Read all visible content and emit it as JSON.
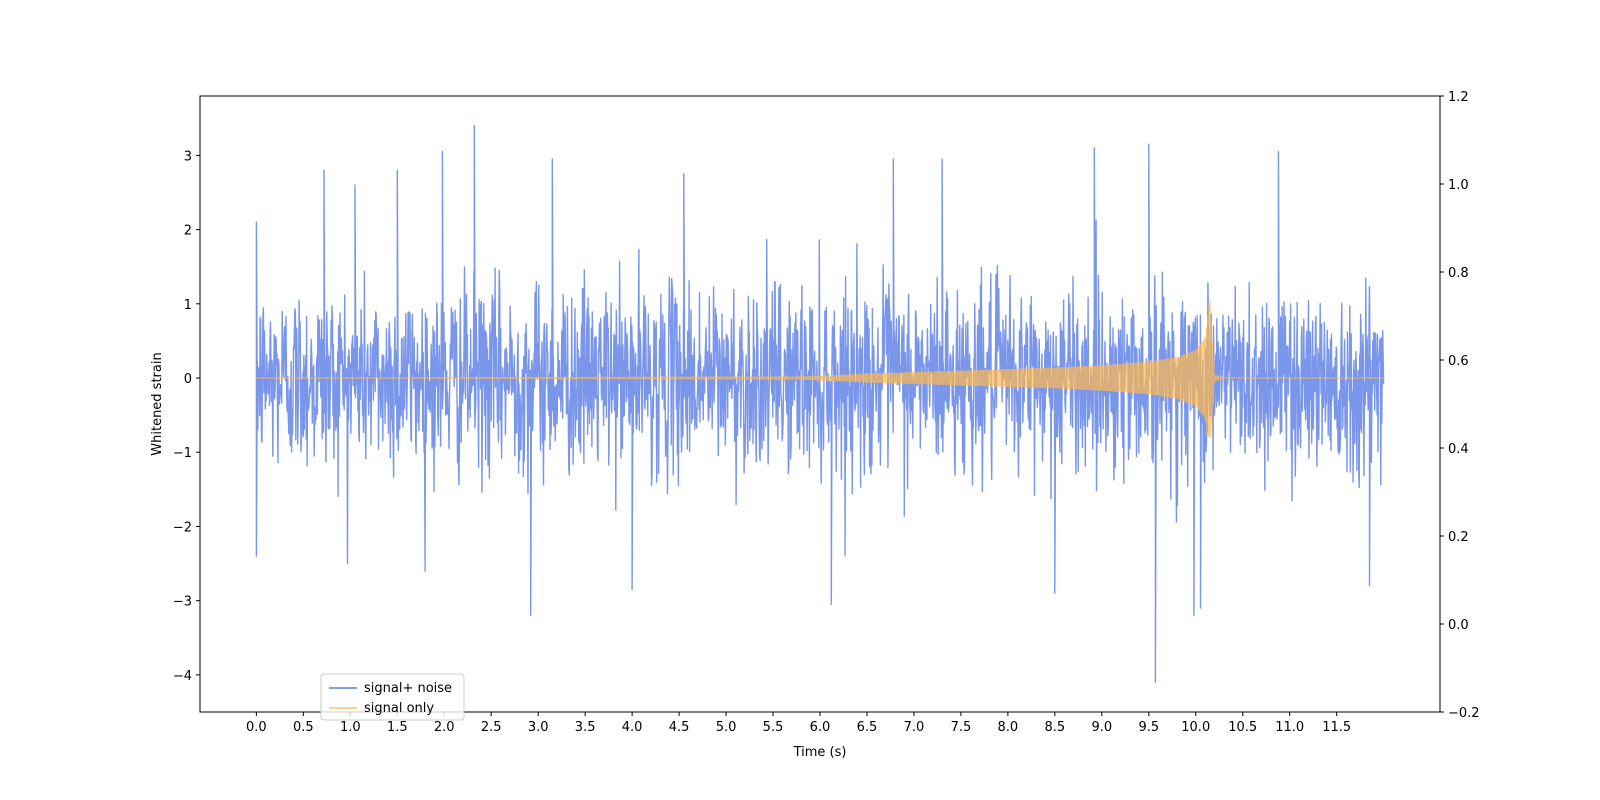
{
  "chart_data": {
    "type": "line",
    "xlabel": "Time (s)",
    "ylabel": "Whitened strain",
    "xlim": [
      -0.6,
      12.6
    ],
    "ylim": [
      -4.5,
      3.8
    ],
    "y2lim": [
      -0.2,
      1.2
    ],
    "x_ticks": [
      "0.0",
      "0.5",
      "1.0",
      "1.5",
      "2.0",
      "2.5",
      "3.0",
      "3.5",
      "4.0",
      "4.5",
      "5.0",
      "5.5",
      "6.0",
      "6.5",
      "7.0",
      "7.5",
      "8.0",
      "8.5",
      "9.0",
      "9.5",
      "10.0",
      "10.5",
      "11.0",
      "11.5"
    ],
    "y_ticks": [
      "3",
      "2",
      "1",
      "0",
      "−1",
      "−2",
      "−3",
      "−4"
    ],
    "y2_ticks": [
      "1.2",
      "1.0",
      "0.8",
      "0.6",
      "0.4",
      "0.2",
      "0.0",
      "−0.2"
    ],
    "legend_position": "lower-left",
    "series": [
      {
        "name": "signal+ noise",
        "color": "#4169E1",
        "alpha": 0.7,
        "kind": "noise",
        "t_start": 0.0,
        "t_end": 12.0,
        "typical_envelope": [
          -1.8,
          1.8
        ],
        "notable_peaks": [
          {
            "t": 0.0,
            "y": 2.1
          },
          {
            "t": 0.0,
            "y": -2.4
          },
          {
            "t": 0.72,
            "y": 2.8
          },
          {
            "t": 1.05,
            "y": 2.6
          },
          {
            "t": 1.5,
            "y": 2.8
          },
          {
            "t": 1.98,
            "y": 3.05
          },
          {
            "t": 2.32,
            "y": 3.4
          },
          {
            "t": 2.92,
            "y": -3.2
          },
          {
            "t": 3.15,
            "y": 2.95
          },
          {
            "t": 4.0,
            "y": -2.85
          },
          {
            "t": 4.55,
            "y": 2.75
          },
          {
            "t": 6.12,
            "y": -3.05
          },
          {
            "t": 6.78,
            "y": 2.95
          },
          {
            "t": 7.3,
            "y": 2.95
          },
          {
            "t": 8.5,
            "y": -2.9
          },
          {
            "t": 8.92,
            "y": 3.1
          },
          {
            "t": 9.5,
            "y": 3.15
          },
          {
            "t": 9.57,
            "y": -4.1
          },
          {
            "t": 9.98,
            "y": -3.2
          },
          {
            "t": 10.05,
            "y": -3.1
          },
          {
            "t": 10.88,
            "y": 3.05
          },
          {
            "t": 11.85,
            "y": -2.8
          }
        ]
      },
      {
        "name": "signal only",
        "color": "#FFB84D",
        "alpha": 0.7,
        "kind": "chirp",
        "t_start": 0.0,
        "t_end": 12.0,
        "t_merger": 10.15,
        "envelope": [
          {
            "t": 0.0,
            "amp": 0.0
          },
          {
            "t": 5.5,
            "amp": 0.01
          },
          {
            "t": 6.0,
            "amp": 0.03
          },
          {
            "t": 6.5,
            "amp": 0.06
          },
          {
            "t": 7.0,
            "amp": 0.08
          },
          {
            "t": 7.5,
            "amp": 0.1
          },
          {
            "t": 8.0,
            "amp": 0.12
          },
          {
            "t": 8.5,
            "amp": 0.14
          },
          {
            "t": 9.0,
            "amp": 0.17
          },
          {
            "t": 9.5,
            "amp": 0.22
          },
          {
            "t": 9.8,
            "amp": 0.28
          },
          {
            "t": 10.0,
            "amp": 0.38
          },
          {
            "t": 10.1,
            "amp": 0.55
          },
          {
            "t": 10.15,
            "amp": 1.1
          },
          {
            "t": 10.2,
            "amp": 0.05
          },
          {
            "t": 10.3,
            "amp": 0.0
          },
          {
            "t": 12.0,
            "amp": 0.0
          }
        ],
        "peak_high": 1.1,
        "peak_low": -0.8
      }
    ]
  }
}
